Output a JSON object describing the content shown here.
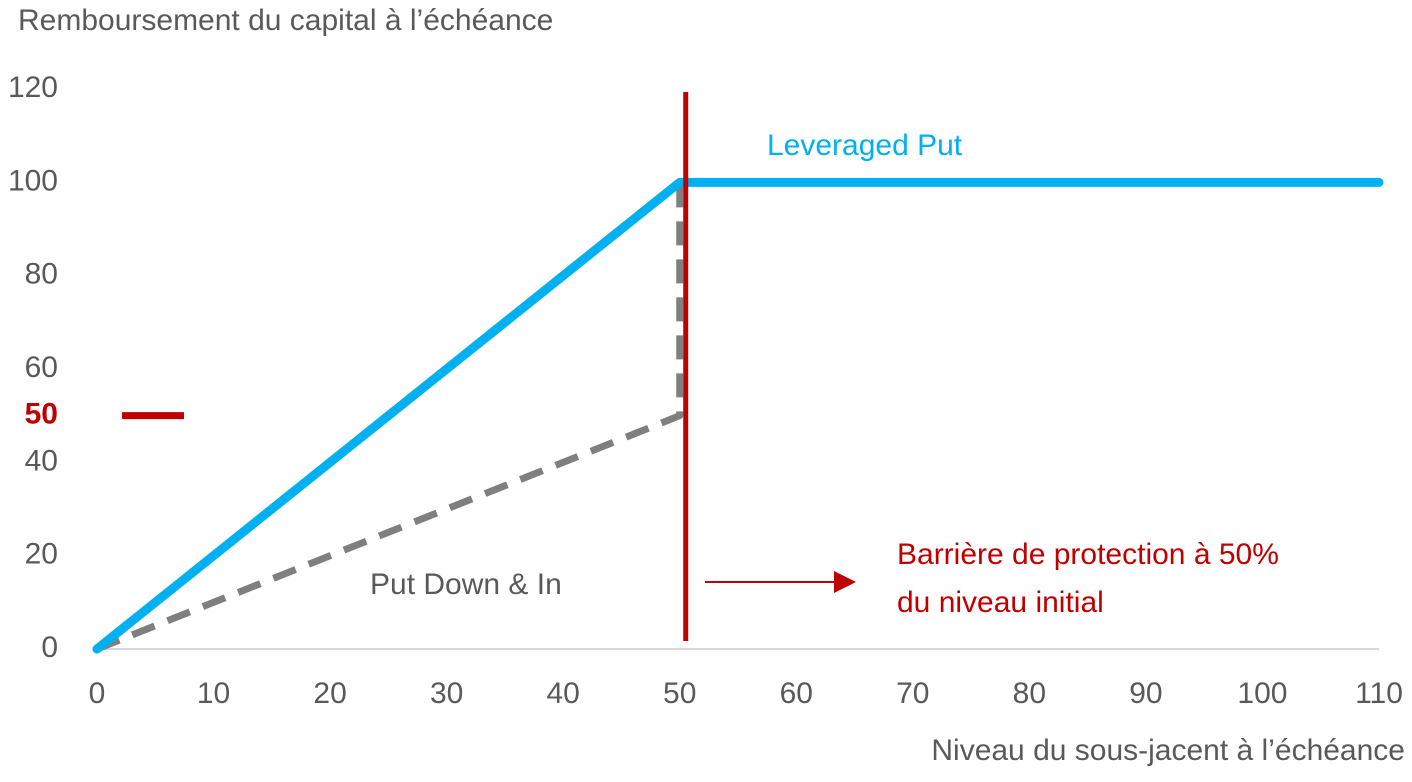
{
  "chart_data": {
    "type": "line",
    "y_axis_title": "Remboursement du capital à l’échéance",
    "x_axis_title": "Niveau du sous-jacent à l’échéance",
    "series": [
      {
        "name": "Leveraged Put",
        "color": "#00b0f0",
        "dashed": false,
        "x": [
          0,
          50,
          110
        ],
        "values": [
          0,
          100,
          100
        ]
      },
      {
        "name": "Put Down & In",
        "color": "#7f7f7f",
        "dashed": true,
        "x": [
          0,
          50,
          50
        ],
        "values": [
          0,
          50,
          100
        ]
      }
    ],
    "xlim": [
      0,
      110
    ],
    "xticks": [
      0,
      10,
      20,
      30,
      40,
      50,
      60,
      70,
      80,
      90,
      100,
      110
    ],
    "ylim": [
      0,
      120
    ],
    "yticks": [
      0,
      20,
      40,
      60,
      80,
      100,
      120
    ],
    "highlight_ytick": {
      "value": 50,
      "color": "#c00000"
    },
    "barrier": {
      "x": 50,
      "color": "#c00000",
      "label": [
        "Barrière de protection à 50%",
        "du niveau initial"
      ]
    },
    "grid": false
  }
}
